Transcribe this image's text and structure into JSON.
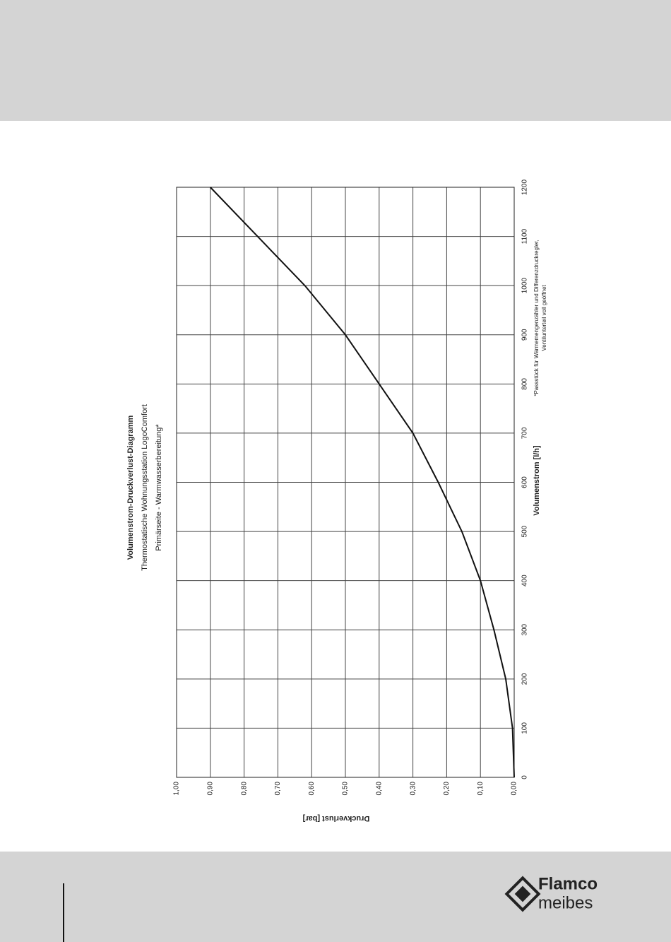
{
  "chart_data": {
    "type": "line",
    "title": "Volumenstrom-Druckverlust-Diagramm",
    "subtitle": [
      "Thermostatische Wohnungsstation LogoComfort",
      "Primärseite - Warmwasserbereitung*"
    ],
    "x_label": "Volumenstrom [l/h]",
    "y_label": "Druckverlust [bar]",
    "note": [
      "*Passstück für Wärmemengenzähler und Differenzdruckregler,",
      "Ventilunterteil voll geöffnet"
    ],
    "x": [
      0,
      100,
      200,
      300,
      400,
      500,
      600,
      700,
      800,
      900,
      1000,
      1100,
      1200
    ],
    "series": [
      {
        "color": "#111111",
        "values": [
          0,
          0.005,
          0.025,
          0.06,
          0.1,
          0.155,
          0.225,
          0.3,
          0.4,
          0.5,
          0.62,
          0.76,
          0.9
        ]
      }
    ],
    "xlim": [
      0,
      1200
    ],
    "xticks": [
      0,
      100,
      200,
      300,
      400,
      500,
      600,
      700,
      800,
      900,
      1000,
      1100,
      1200
    ],
    "ylim": [
      0,
      1
    ],
    "yticks": [
      {
        "value": 0,
        "label": "0,00"
      },
      {
        "value": 0.1,
        "label": "0,10"
      },
      {
        "value": 0.2,
        "label": "0,20"
      },
      {
        "value": 0.3,
        "label": "0,30"
      },
      {
        "value": 0.4,
        "label": "0,40"
      },
      {
        "value": 0.5,
        "label": "0,50"
      },
      {
        "value": 0.6,
        "label": "0,60"
      },
      {
        "value": 0.7,
        "label": "0,70"
      },
      {
        "value": 0.8,
        "label": "0,80"
      },
      {
        "value": 0.9,
        "label": "0,90"
      },
      {
        "value": 1,
        "label": "1,00"
      }
    ],
    "grid": true
  },
  "footer": {
    "logo": [
      "Flamco",
      "meibes"
    ]
  }
}
